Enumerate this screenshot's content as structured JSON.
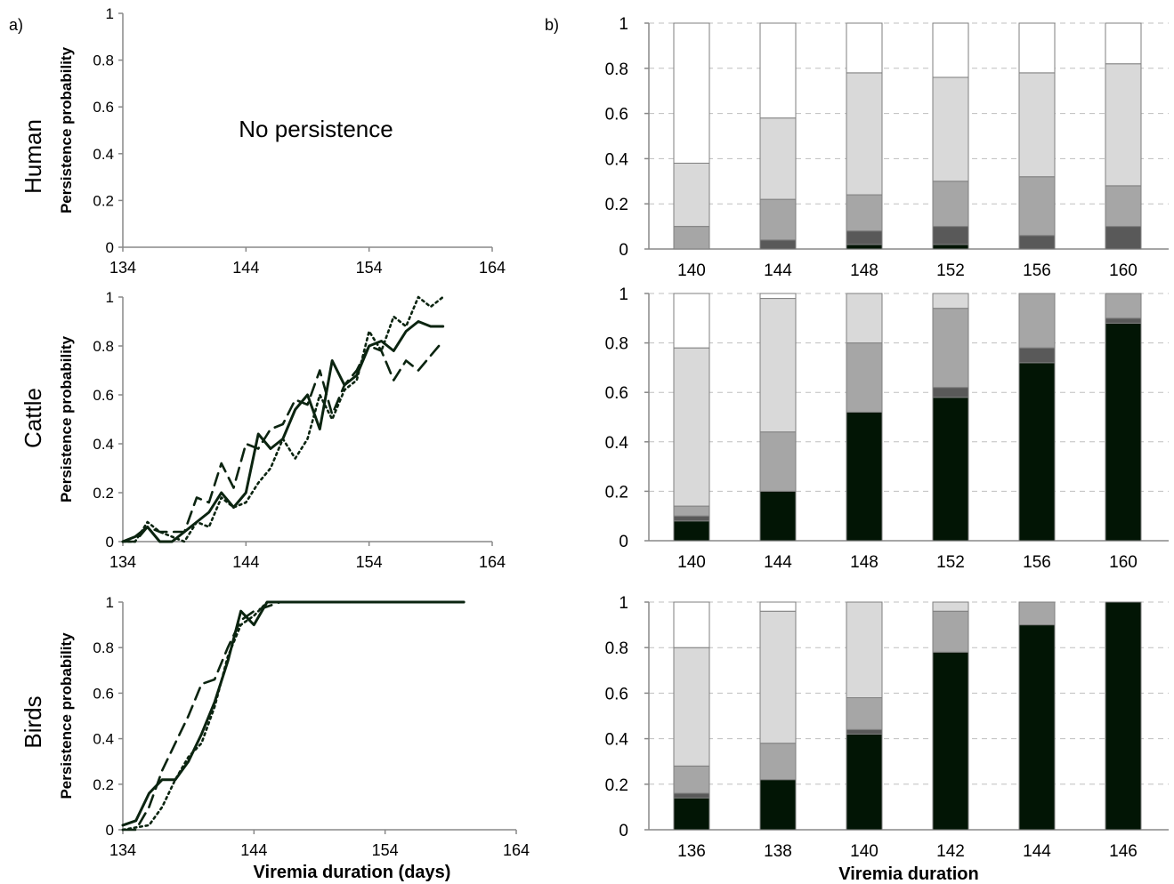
{
  "panel_labels": {
    "a": "a)",
    "b": "b)"
  },
  "row_labels": [
    "Human",
    "Cattle",
    "Birds"
  ],
  "annotations": {
    "no_persistence": "No persistence"
  },
  "colors": {
    "line": "#0b2410",
    "bar_dark": "#021505",
    "bar_darkgrey": "#595959",
    "bar_midgrey": "#a6a6a6",
    "bar_lightgrey": "#d9d9d9",
    "bar_white": "#ffffff",
    "axis": "#888888",
    "grid": "#bfbfbf"
  },
  "chart_data": [
    {
      "id": "a-human",
      "type": "line",
      "title": "",
      "ylabel": "Persistence probability",
      "xlabel": "",
      "xlim": [
        134,
        164
      ],
      "ylim": [
        0,
        1
      ],
      "xticks": [
        "134",
        "144",
        "154",
        "164"
      ],
      "yticks": [
        "0",
        "0.2",
        "0.4",
        "0.6",
        "0.8",
        "1"
      ],
      "annotation": "No persistence",
      "series": []
    },
    {
      "id": "a-cattle",
      "type": "line",
      "title": "",
      "ylabel": "Persistence probability",
      "xlabel": "",
      "xlim": [
        134,
        164
      ],
      "ylim": [
        0,
        1
      ],
      "xticks": [
        "134",
        "144",
        "154",
        "164"
      ],
      "yticks": [
        "0",
        "0.2",
        "0.4",
        "0.6",
        "0.8",
        "1"
      ],
      "series": [
        {
          "style": "solid",
          "x": [
            134,
            135,
            136,
            137,
            138,
            139,
            140,
            141,
            142,
            143,
            144,
            145,
            146,
            147,
            148,
            149,
            150,
            151,
            152,
            153,
            154,
            155,
            156,
            157,
            158,
            159,
            160
          ],
          "y": [
            0,
            0.02,
            0.06,
            0,
            0,
            0.04,
            0.08,
            0.12,
            0.2,
            0.14,
            0.2,
            0.44,
            0.38,
            0.42,
            0.54,
            0.6,
            0.46,
            0.74,
            0.64,
            0.68,
            0.8,
            0.82,
            0.78,
            0.86,
            0.9,
            0.88,
            0.88
          ]
        },
        {
          "style": "dashed",
          "x": [
            134,
            135,
            136,
            137,
            138,
            139,
            140,
            141,
            142,
            143,
            144,
            145,
            146,
            147,
            148,
            149,
            150,
            151,
            152,
            153,
            154,
            155,
            156,
            157,
            158,
            159,
            160
          ],
          "y": [
            0,
            0,
            0.06,
            0.04,
            0.04,
            0.04,
            0.18,
            0.16,
            0.32,
            0.22,
            0.4,
            0.38,
            0.46,
            0.48,
            0.58,
            0.56,
            0.7,
            0.52,
            0.64,
            0.7,
            0.8,
            0.78,
            0.66,
            0.74,
            0.7,
            0.76,
            0.82
          ]
        },
        {
          "style": "dotted",
          "x": [
            134,
            135,
            136,
            137,
            138,
            139,
            140,
            141,
            142,
            143,
            144,
            145,
            146,
            147,
            148,
            149,
            150,
            151,
            152,
            153,
            154,
            155,
            156,
            157,
            158,
            159,
            160
          ],
          "y": [
            0,
            0,
            0.08,
            0.04,
            0.02,
            0,
            0.08,
            0.06,
            0.18,
            0.14,
            0.16,
            0.24,
            0.3,
            0.42,
            0.34,
            0.42,
            0.6,
            0.5,
            0.62,
            0.66,
            0.86,
            0.78,
            0.92,
            0.88,
            1,
            0.96,
            1
          ]
        }
      ]
    },
    {
      "id": "a-birds",
      "type": "line",
      "title": "",
      "ylabel": "Persistence probability",
      "xlabel": "Viremia duration (days)",
      "xlim": [
        134,
        164
      ],
      "ylim": [
        0,
        1
      ],
      "xticks": [
        "134",
        "144",
        "154",
        "164"
      ],
      "yticks": [
        "0",
        "0.2",
        "0.4",
        "0.6",
        "0.8",
        "1"
      ],
      "series": [
        {
          "style": "solid",
          "x": [
            134,
            135,
            136,
            137,
            138,
            139,
            140,
            141,
            142,
            143,
            144,
            145,
            146,
            147,
            148,
            149,
            150,
            151,
            152,
            153,
            154,
            155,
            156,
            157,
            158,
            159,
            160
          ],
          "y": [
            0.02,
            0.04,
            0.16,
            0.22,
            0.22,
            0.3,
            0.42,
            0.56,
            0.74,
            0.96,
            0.9,
            1,
            1,
            1,
            1,
            1,
            1,
            1,
            1,
            1,
            1,
            1,
            1,
            1,
            1,
            1,
            1
          ]
        },
        {
          "style": "dashed",
          "x": [
            134,
            135,
            136,
            137,
            138,
            139,
            140,
            141,
            142,
            143,
            144,
            145,
            146,
            147,
            148,
            149,
            150,
            151,
            152,
            153,
            154,
            155,
            156,
            157,
            158,
            159,
            160
          ],
          "y": [
            0,
            0,
            0.1,
            0.26,
            0.38,
            0.5,
            0.64,
            0.66,
            0.8,
            0.92,
            0.96,
            0.98,
            1,
            1,
            1,
            1,
            1,
            1,
            1,
            1,
            1,
            1,
            1,
            1,
            1,
            1,
            1
          ]
        },
        {
          "style": "dotted",
          "x": [
            134,
            135,
            136,
            137,
            138,
            139,
            140,
            141,
            142,
            143,
            144,
            145,
            146,
            147,
            148,
            149,
            150,
            151,
            152,
            153,
            154,
            155,
            156,
            157,
            158,
            159,
            160
          ],
          "y": [
            0,
            0.01,
            0.02,
            0.1,
            0.22,
            0.32,
            0.38,
            0.54,
            0.76,
            0.9,
            0.94,
            1,
            1,
            1,
            1,
            1,
            1,
            1,
            1,
            1,
            1,
            1,
            1,
            1,
            1,
            1,
            1
          ]
        }
      ]
    },
    {
      "id": "b-human",
      "type": "bar",
      "stacked": true,
      "xlabel": "",
      "ylim": [
        0,
        1
      ],
      "yticks": [
        "0",
        "0.2",
        "0.4",
        "0.6",
        "0.8",
        "1"
      ],
      "grid": true,
      "categories": [
        "140",
        "144",
        "148",
        "152",
        "156",
        "160"
      ],
      "series": [
        {
          "color": "bar_dark",
          "values": [
            0,
            0,
            0.02,
            0.02,
            0,
            0
          ]
        },
        {
          "color": "bar_darkgrey",
          "values": [
            0,
            0.04,
            0.06,
            0.08,
            0.06,
            0.1
          ]
        },
        {
          "color": "bar_midgrey",
          "values": [
            0.1,
            0.18,
            0.16,
            0.2,
            0.26,
            0.18
          ]
        },
        {
          "color": "bar_lightgrey",
          "values": [
            0.28,
            0.36,
            0.54,
            0.46,
            0.46,
            0.54
          ]
        },
        {
          "color": "bar_white",
          "values": [
            0.62,
            0.42,
            0.22,
            0.24,
            0.22,
            0.18
          ]
        }
      ]
    },
    {
      "id": "b-cattle",
      "type": "bar",
      "stacked": true,
      "xlabel": "",
      "ylim": [
        0,
        1
      ],
      "yticks": [
        "0",
        "0.2",
        "0.4",
        "0.6",
        "0.8",
        "1"
      ],
      "grid": true,
      "categories": [
        "140",
        "144",
        "148",
        "152",
        "156",
        "160"
      ],
      "series": [
        {
          "color": "bar_dark",
          "values": [
            0.08,
            0.2,
            0.52,
            0.58,
            0.72,
            0.88
          ]
        },
        {
          "color": "bar_darkgrey",
          "values": [
            0.02,
            0,
            0,
            0.04,
            0.06,
            0.02
          ]
        },
        {
          "color": "bar_midgrey",
          "values": [
            0.04,
            0.24,
            0.28,
            0.32,
            0.22,
            0.1
          ]
        },
        {
          "color": "bar_lightgrey",
          "values": [
            0.64,
            0.54,
            0.2,
            0.06,
            0,
            0
          ]
        },
        {
          "color": "bar_white",
          "values": [
            0.22,
            0.02,
            0,
            0,
            0,
            0
          ]
        }
      ]
    },
    {
      "id": "b-birds",
      "type": "bar",
      "stacked": true,
      "xlabel": "Viremia duration",
      "ylim": [
        0,
        1
      ],
      "yticks": [
        "0",
        "0.2",
        "0.4",
        "0.6",
        "0.8",
        "1"
      ],
      "grid": true,
      "categories": [
        "136",
        "138",
        "140",
        "142",
        "144",
        "146"
      ],
      "series": [
        {
          "color": "bar_dark",
          "values": [
            0.14,
            0.22,
            0.42,
            0.78,
            0.9,
            1
          ]
        },
        {
          "color": "bar_darkgrey",
          "values": [
            0.02,
            0,
            0.02,
            0,
            0,
            0
          ]
        },
        {
          "color": "bar_midgrey",
          "values": [
            0.12,
            0.16,
            0.14,
            0.18,
            0.1,
            0
          ]
        },
        {
          "color": "bar_lightgrey",
          "values": [
            0.52,
            0.58,
            0.42,
            0.04,
            0,
            0
          ]
        },
        {
          "color": "bar_white",
          "values": [
            0.2,
            0.04,
            0,
            0,
            0,
            0
          ]
        }
      ]
    }
  ]
}
